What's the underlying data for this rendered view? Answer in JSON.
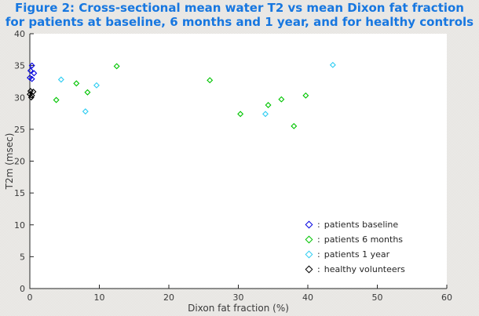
{
  "figure": {
    "title_line1": "Figure 2: Cross-sectional mean water T2 vs mean Dixon fat fraction",
    "title_line2": "for patients at baseline, 6 months and 1 year, and for healthy controls",
    "title_color": "#1777e0",
    "background_color": "#e8e6e3",
    "plot_background": "#ffffff",
    "axis_color": "#262626",
    "tick_label_color": "#3a3a3a"
  },
  "chart_data": {
    "type": "scatter",
    "title": "Figure 2: Cross-sectional mean water T2 vs mean Dixon fat fraction for patients at baseline, 6 months and 1 year, and for healthy controls",
    "xlabel": "Dixon fat fraction (%)",
    "ylabel": "T2m (msec)",
    "xlim": [
      0,
      60
    ],
    "ylim": [
      0,
      40
    ],
    "x_ticks": [
      0,
      10,
      20,
      30,
      40,
      50,
      60
    ],
    "y_ticks": [
      0,
      5,
      10,
      15,
      20,
      25,
      30,
      35,
      40
    ],
    "grid": false,
    "marker": "open-diamond",
    "legend_position": "inside-lower-right",
    "legend_separator": ":",
    "series": [
      {
        "name": "patients baseline",
        "color": "#0000e0",
        "points": [
          [
            0.3,
            35.0
          ],
          [
            0.1,
            34.2
          ],
          [
            0.6,
            33.8
          ],
          [
            0.0,
            33.1
          ],
          [
            0.3,
            32.9
          ]
        ]
      },
      {
        "name": "patients 6 months",
        "color": "#00c400",
        "points": [
          [
            3.8,
            29.6
          ],
          [
            6.7,
            32.2
          ],
          [
            8.3,
            30.8
          ],
          [
            12.5,
            34.9
          ],
          [
            25.9,
            32.7
          ],
          [
            30.3,
            27.4
          ],
          [
            34.3,
            28.8
          ],
          [
            36.2,
            29.7
          ],
          [
            38.0,
            25.5
          ],
          [
            39.7,
            30.3
          ]
        ]
      },
      {
        "name": "patients 1 year",
        "color": "#2fcdf2",
        "points": [
          [
            4.5,
            32.8
          ],
          [
            8.0,
            27.8
          ],
          [
            9.6,
            31.9
          ],
          [
            33.9,
            27.4
          ],
          [
            43.6,
            35.1
          ]
        ]
      },
      {
        "name": "healthy volunteers",
        "color": "#000000",
        "points": [
          [
            0.1,
            31.0
          ],
          [
            0.5,
            30.9
          ],
          [
            0.0,
            30.5
          ],
          [
            0.3,
            30.3
          ],
          [
            0.2,
            30.0
          ]
        ]
      }
    ]
  }
}
